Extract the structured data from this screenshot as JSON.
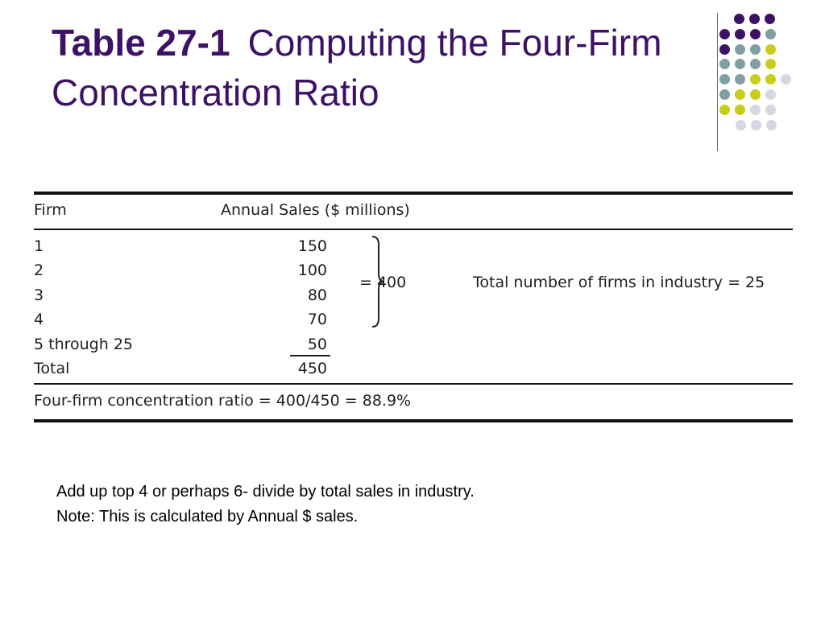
{
  "title": {
    "number": "Table 27-1",
    "text": "Computing the Four-Firm Concentration Ratio"
  },
  "decoration": {
    "dot_colors": [
      "#3d1166",
      "#7f9fa3",
      "#c8cd1a",
      "#d6d6e4"
    ]
  },
  "table": {
    "headers": {
      "firm": "Firm",
      "sales": "Annual Sales ($ millions)"
    },
    "rows": [
      {
        "firm": "1",
        "sales": "150"
      },
      {
        "firm": "2",
        "sales": "100"
      },
      {
        "firm": "3",
        "sales": "80"
      },
      {
        "firm": "4",
        "sales": "70"
      },
      {
        "firm": "5 through 25",
        "sales": "50"
      },
      {
        "firm": "Total",
        "sales": "450"
      }
    ],
    "brace_sum": "= 400",
    "total_firms_note": "Total number of firms in industry = 25",
    "ratio_line": "Four-firm concentration ratio = 400/450 = 88.9%"
  },
  "notes": [
    "Add up top 4 or perhaps 6- divide by total sales in industry.",
    "Note:  This is calculated by Annual $ sales."
  ]
}
